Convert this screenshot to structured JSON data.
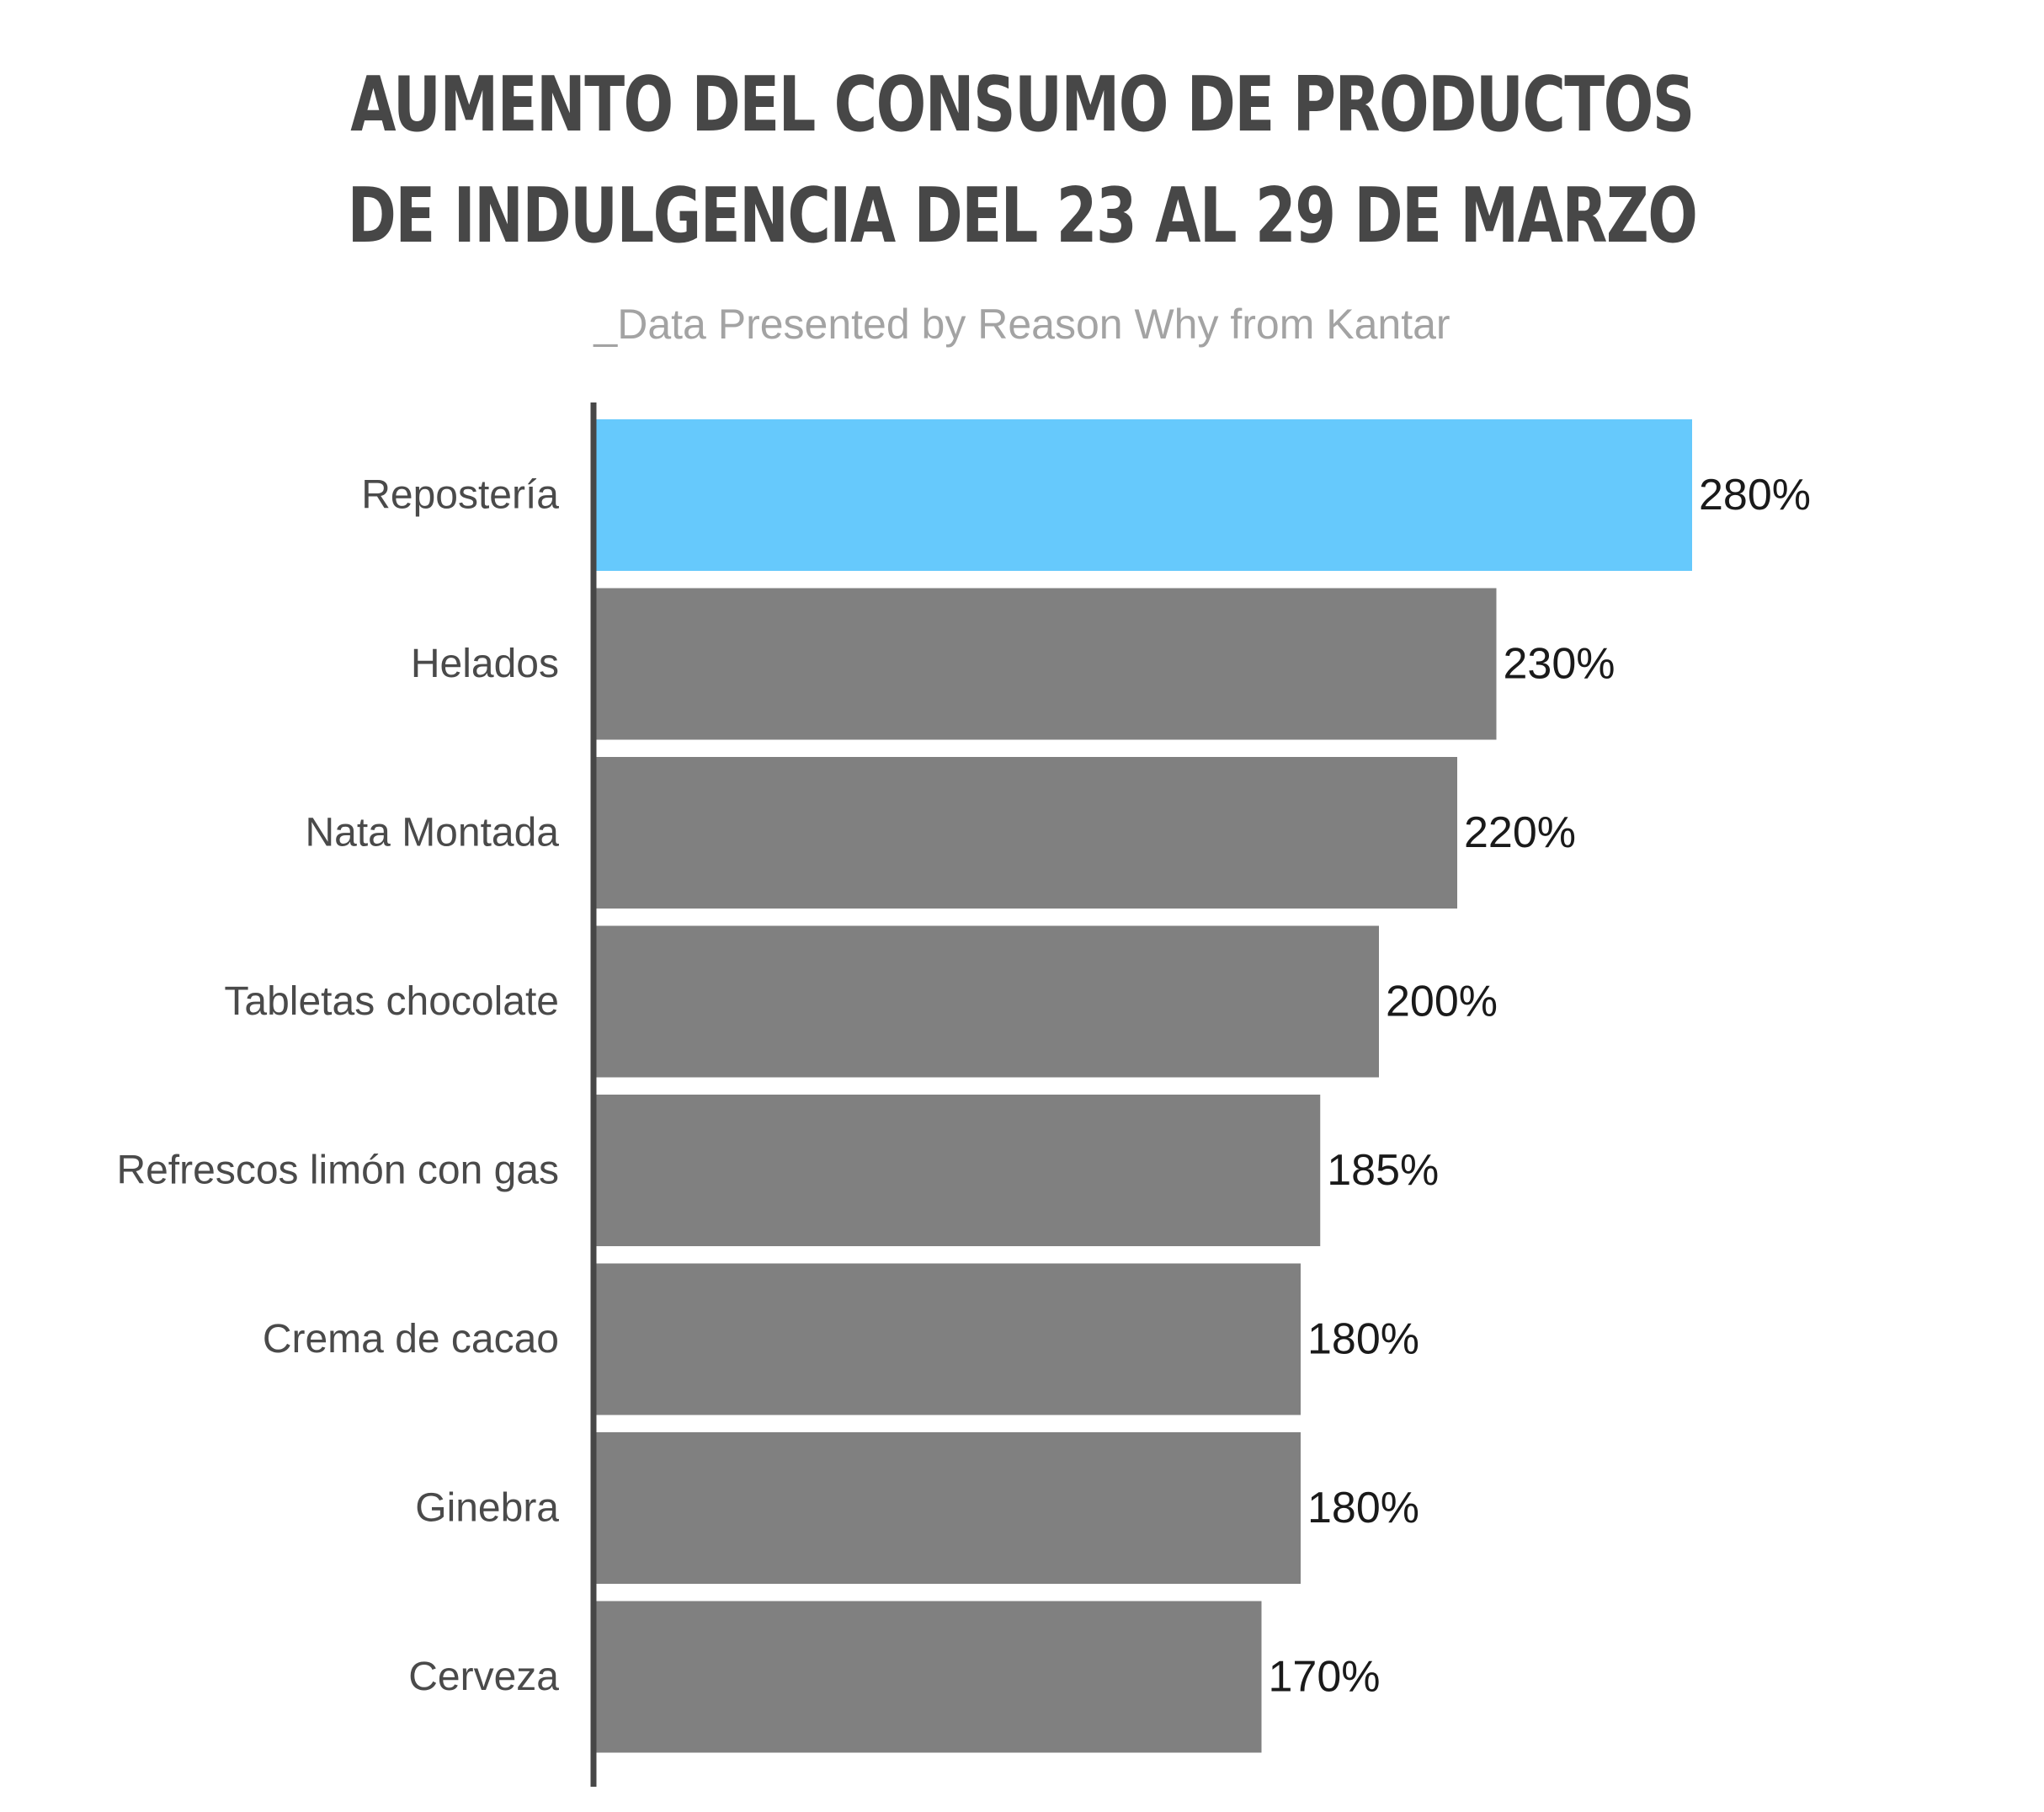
{
  "header": {
    "title_line_1": "AUMENTO DEL CONSUMO DE PRODUCTOS",
    "title_line_2": "DE INDULGENCIA DEL 23 AL 29 DE MARZO",
    "subtitle": "_Data Presented by Reason Why from Kantar"
  },
  "chart_data": {
    "type": "bar",
    "orientation": "horizontal",
    "title": "AUMENTO DEL CONSUMO DE PRODUCTOS DE INDULGENCIA DEL 23 AL 29 DE MARZO",
    "subtitle": "_Data Presented by Reason Why from Kantar",
    "xlabel": "",
    "ylabel": "",
    "xlim": [
      0,
      280
    ],
    "grid": false,
    "legend": "none",
    "value_suffix": "%",
    "categories": [
      "Repostería",
      "Helados",
      "Nata Montada",
      "Tabletas chocolate",
      "Refrescos limón con gas",
      "Crema de cacao",
      "Ginebra",
      "Cerveza"
    ],
    "values": [
      280,
      230,
      220,
      200,
      185,
      180,
      180,
      170
    ],
    "value_labels": [
      "280%",
      "230%",
      "220%",
      "200%",
      "185%",
      "180%",
      "180%",
      "170%"
    ],
    "colors": {
      "highlight": "#66c9fc",
      "default": "#808080",
      "axis": "#474747"
    },
    "highlight_index": 0
  }
}
